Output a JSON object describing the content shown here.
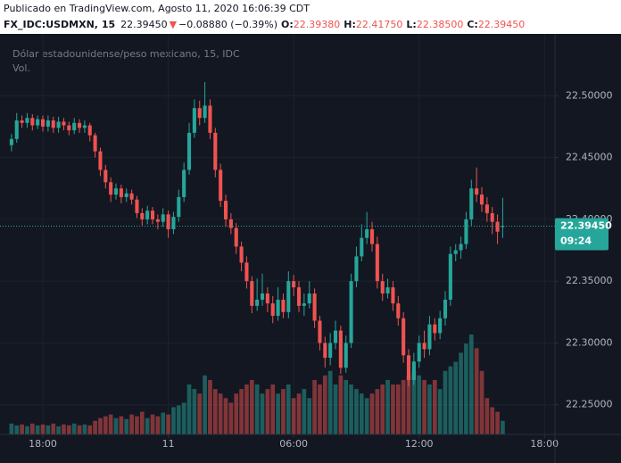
{
  "header": {
    "published": "Publicado en TradingView.com, Agosto 11, 2020 16:06:39 CDT",
    "symbol": "FX_IDC:USDMXN, 15",
    "price": "22.39450",
    "arrow": "▼",
    "change": "−0.08880 (−0.39%)",
    "o_label": "O:",
    "o": "22.39380",
    "h_label": "H:",
    "h": "22.41750",
    "l_label": "L:",
    "l": "22.38500",
    "c_label": "C:",
    "c": "22.39450"
  },
  "chart_data": {
    "type": "candlestick",
    "title": "Dólar estadounidense/peso mexicano, 15, IDC",
    "volume_label": "Vol.",
    "up_color": "#26a69a",
    "down_color": "#ef5350",
    "opens": [
      22.46,
      22.465,
      22.48,
      22.478,
      22.482,
      22.476,
      22.481,
      22.475,
      22.48,
      22.474,
      22.479,
      22.476,
      22.472,
      22.478,
      22.474,
      22.476,
      22.468,
      22.455,
      22.44,
      22.43,
      22.42,
      22.425,
      22.418,
      22.421,
      22.416,
      22.405,
      22.4,
      22.407,
      22.4,
      22.398,
      22.404,
      22.392,
      22.402,
      22.418,
      22.44,
      22.47,
      22.49,
      22.482,
      22.492,
      22.47,
      22.44,
      22.415,
      22.4,
      22.393,
      22.378,
      22.365,
      22.35,
      22.33,
      22.335,
      22.34,
      22.332,
      22.322,
      22.335,
      22.325,
      22.35,
      22.345,
      22.33,
      22.332,
      22.34,
      22.318,
      22.3,
      22.288,
      22.3,
      22.31,
      22.28,
      22.3,
      22.35,
      22.37,
      22.385,
      22.392,
      22.38,
      22.35,
      22.34,
      22.345,
      22.332,
      22.32,
      22.29,
      22.27,
      22.285,
      22.3,
      22.295,
      22.315,
      22.308,
      22.32,
      22.335,
      22.372,
      22.375,
      22.38,
      22.4,
      22.425,
      22.42,
      22.412,
      22.405,
      22.398,
      22.3938
    ],
    "highs": [
      22.469,
      22.486,
      22.484,
      22.486,
      22.485,
      22.484,
      22.484,
      22.484,
      22.483,
      22.483,
      22.482,
      22.479,
      22.482,
      22.481,
      22.48,
      22.478,
      22.47,
      22.458,
      22.444,
      22.434,
      22.429,
      22.428,
      22.425,
      22.424,
      22.419,
      22.409,
      22.411,
      22.41,
      22.404,
      22.409,
      22.407,
      22.406,
      22.424,
      22.446,
      22.478,
      22.497,
      22.496,
      22.511,
      22.497,
      22.474,
      22.445,
      22.42,
      22.405,
      22.397,
      22.382,
      22.37,
      22.354,
      22.352,
      22.356,
      22.345,
      22.338,
      22.345,
      22.34,
      22.358,
      22.355,
      22.35,
      22.34,
      22.35,
      22.344,
      22.322,
      22.305,
      22.308,
      22.318,
      22.314,
      22.306,
      22.356,
      22.378,
      22.396,
      22.406,
      22.398,
      22.386,
      22.356,
      22.352,
      22.35,
      22.338,
      22.325,
      22.295,
      22.292,
      22.306,
      22.31,
      22.322,
      22.32,
      22.326,
      22.342,
      22.378,
      22.38,
      22.386,
      22.406,
      22.432,
      22.442,
      22.426,
      22.418,
      22.41,
      22.404,
      22.4175
    ],
    "lows": [
      22.455,
      22.462,
      22.474,
      22.474,
      22.472,
      22.473,
      22.471,
      22.471,
      22.47,
      22.47,
      22.472,
      22.468,
      22.469,
      22.47,
      22.47,
      22.463,
      22.45,
      22.435,
      22.425,
      22.414,
      22.416,
      22.413,
      22.414,
      22.412,
      22.401,
      22.395,
      22.396,
      22.396,
      22.392,
      22.394,
      22.385,
      22.388,
      22.398,
      22.414,
      22.436,
      22.466,
      22.476,
      22.478,
      22.465,
      22.434,
      22.41,
      22.394,
      22.388,
      22.372,
      22.358,
      22.344,
      22.324,
      22.326,
      22.33,
      22.325,
      22.316,
      22.318,
      22.32,
      22.32,
      22.338,
      22.325,
      22.322,
      22.328,
      22.312,
      22.294,
      22.28,
      22.282,
      22.295,
      22.275,
      22.276,
      22.296,
      22.345,
      22.366,
      22.38,
      22.374,
      22.344,
      22.334,
      22.336,
      22.326,
      22.314,
      22.284,
      22.265,
      22.266,
      22.28,
      22.288,
      22.29,
      22.302,
      22.303,
      22.314,
      22.33,
      22.366,
      22.368,
      22.376,
      22.395,
      22.414,
      22.406,
      22.398,
      22.388,
      22.38,
      22.385
    ],
    "closes": [
      22.465,
      22.48,
      22.478,
      22.482,
      22.476,
      22.481,
      22.475,
      22.48,
      22.474,
      22.479,
      22.476,
      22.472,
      22.478,
      22.474,
      22.476,
      22.468,
      22.455,
      22.44,
      22.43,
      22.42,
      22.425,
      22.418,
      22.421,
      22.416,
      22.405,
      22.4,
      22.407,
      22.4,
      22.398,
      22.404,
      22.392,
      22.402,
      22.418,
      22.44,
      22.47,
      22.49,
      22.482,
      22.492,
      22.47,
      22.44,
      22.415,
      22.4,
      22.393,
      22.378,
      22.365,
      22.35,
      22.33,
      22.335,
      22.34,
      22.332,
      22.322,
      22.335,
      22.325,
      22.35,
      22.345,
      22.33,
      22.332,
      22.34,
      22.318,
      22.3,
      22.288,
      22.3,
      22.31,
      22.28,
      22.3,
      22.35,
      22.37,
      22.385,
      22.392,
      22.38,
      22.35,
      22.34,
      22.345,
      22.332,
      22.32,
      22.29,
      22.27,
      22.285,
      22.3,
      22.295,
      22.315,
      22.308,
      22.32,
      22.335,
      22.372,
      22.375,
      22.38,
      22.4,
      22.425,
      22.42,
      22.412,
      22.405,
      22.398,
      22.39,
      22.3945
    ],
    "volumes": [
      12,
      10,
      11,
      9,
      12,
      10,
      11,
      10,
      12,
      9,
      11,
      10,
      12,
      10,
      11,
      10,
      15,
      18,
      20,
      22,
      18,
      20,
      17,
      22,
      20,
      25,
      18,
      22,
      20,
      24,
      22,
      30,
      32,
      35,
      55,
      50,
      45,
      65,
      60,
      50,
      45,
      40,
      35,
      45,
      50,
      55,
      60,
      55,
      45,
      50,
      55,
      45,
      50,
      55,
      40,
      45,
      50,
      40,
      60,
      55,
      65,
      70,
      55,
      65,
      60,
      55,
      50,
      45,
      40,
      45,
      50,
      55,
      60,
      55,
      55,
      60,
      65,
      70,
      65,
      60,
      55,
      60,
      50,
      70,
      75,
      80,
      90,
      100,
      110,
      95,
      70,
      40,
      30,
      25,
      15
    ],
    "ylim": [
      22.226,
      22.55
    ],
    "yticks": [
      {
        "value": 22.25,
        "label": "22.25000"
      },
      {
        "value": 22.3,
        "label": "22.30000"
      },
      {
        "value": 22.35,
        "label": "22.35000"
      },
      {
        "value": 22.4,
        "label": "22.40000"
      },
      {
        "value": 22.45,
        "label": "22.45000"
      },
      {
        "value": 22.5,
        "label": "22.50000"
      }
    ],
    "xlim": [
      -2.2,
      104
    ],
    "xticks": [
      {
        "value": 6,
        "label": "18:00"
      },
      {
        "value": 30,
        "label": "11"
      },
      {
        "value": 54,
        "label": "06:00"
      },
      {
        "value": 78,
        "label": "12:00"
      },
      {
        "value": 102,
        "label": "18:00"
      }
    ],
    "grid": true,
    "last_price": {
      "value": 22.3945,
      "label": "22.39450"
    },
    "countdown": "09:24"
  }
}
